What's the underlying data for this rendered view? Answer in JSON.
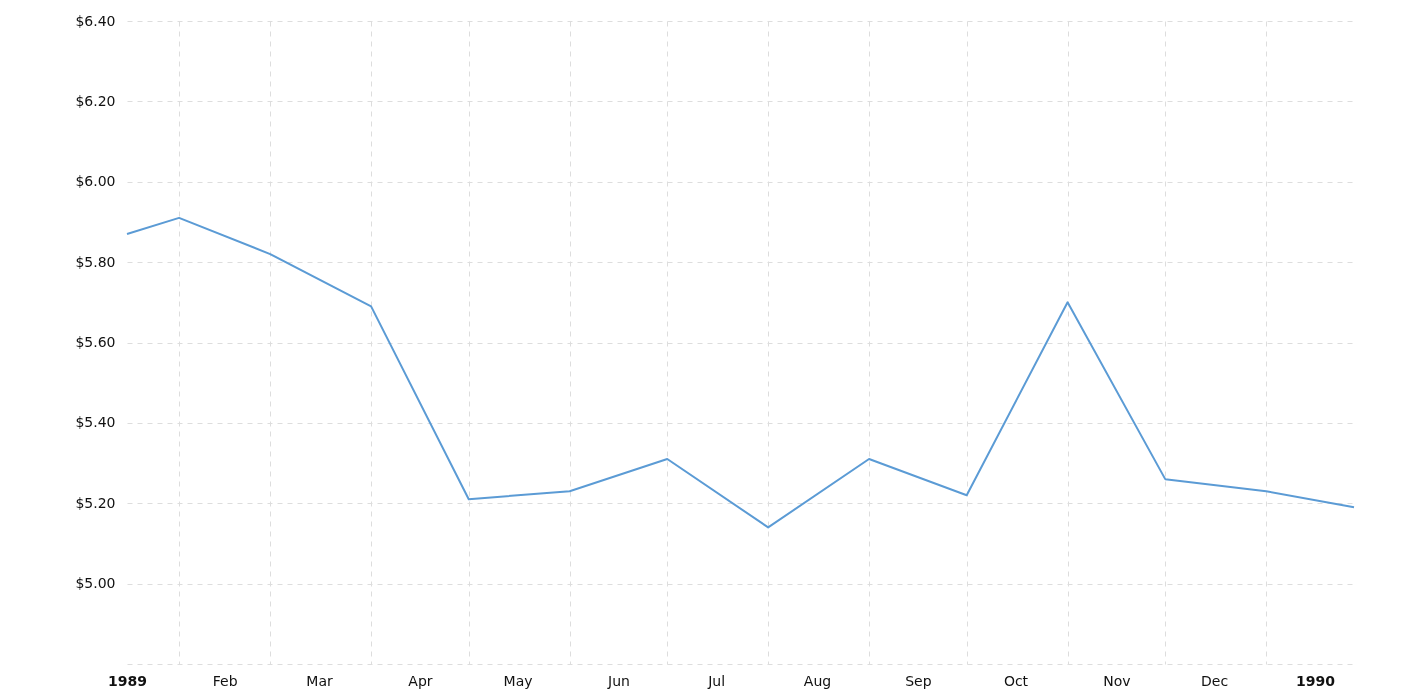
{
  "chart_data": {
    "type": "line",
    "x": [
      "1989-01-16",
      "1989-02-01",
      "1989-03-01",
      "1989-04-01",
      "1989-05-01",
      "1989-06-01",
      "1989-07-01",
      "1989-08-01",
      "1989-09-01",
      "1989-10-01",
      "1989-11-01",
      "1989-12-01",
      "1990-01-01",
      "1990-01-28"
    ],
    "series": [
      {
        "color": "#5b9bd5",
        "values": [
          5.87,
          5.91,
          5.82,
          5.69,
          5.21,
          5.23,
          5.31,
          5.14,
          5.31,
          5.22,
          5.7,
          5.26,
          5.23,
          5.19
        ]
      }
    ],
    "xlim": [
      "1989-01-16",
      "1990-01-28"
    ],
    "xticks": [
      {
        "value": "1989-01-16",
        "label": "1989"
      },
      {
        "value": "1989-02-01",
        "label": null
      },
      {
        "value": "1989-02-15",
        "label": "Feb"
      },
      {
        "value": "1989-03-01",
        "label": null
      },
      {
        "value": "1989-03-16",
        "label": "Mar"
      },
      {
        "value": "1989-04-01",
        "label": null
      },
      {
        "value": "1989-04-16",
        "label": "Apr"
      },
      {
        "value": "1989-05-01",
        "label": null
      },
      {
        "value": "1989-05-16",
        "label": "May"
      },
      {
        "value": "1989-06-01",
        "label": null
      },
      {
        "value": "1989-06-16",
        "label": "Jun"
      },
      {
        "value": "1989-07-01",
        "label": null
      },
      {
        "value": "1989-07-16",
        "label": "Jul"
      },
      {
        "value": "1989-08-01",
        "label": null
      },
      {
        "value": "1989-08-16",
        "label": "Aug"
      },
      {
        "value": "1989-09-01",
        "label": null
      },
      {
        "value": "1989-09-16",
        "label": "Sep"
      },
      {
        "value": "1989-10-01",
        "label": null
      },
      {
        "value": "1989-10-16",
        "label": "Oct"
      },
      {
        "value": "1989-11-01",
        "label": null
      },
      {
        "value": "1989-11-16",
        "label": "Nov"
      },
      {
        "value": "1989-12-01",
        "label": null
      },
      {
        "value": "1989-12-16",
        "label": "Dec"
      },
      {
        "value": "1990-01-01",
        "label": null
      },
      {
        "value": "1990-01-16",
        "label": "1990"
      }
    ],
    "ylim": [
      4.8,
      6.4
    ],
    "yticks": [
      {
        "value": 4.8,
        "label": null
      },
      {
        "value": 5.0,
        "label": "$5.00"
      },
      {
        "value": 5.2,
        "label": "$5.20"
      },
      {
        "value": 5.4,
        "label": "$5.40"
      },
      {
        "value": 5.6,
        "label": "$5.60"
      },
      {
        "value": 5.8,
        "label": "$5.80"
      },
      {
        "value": 6.0,
        "label": "$6.00"
      },
      {
        "value": 6.2,
        "label": "$6.20"
      },
      {
        "value": 6.4,
        "label": "$6.40"
      }
    ],
    "grid": true,
    "line_style": "solid",
    "marker": "none"
  }
}
